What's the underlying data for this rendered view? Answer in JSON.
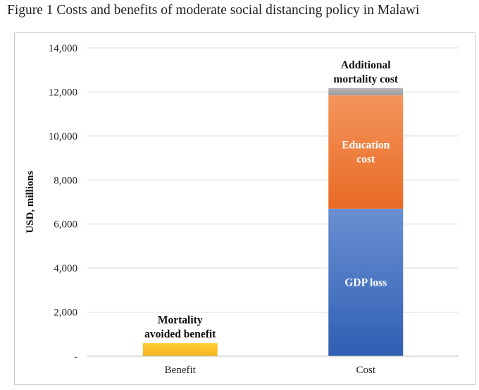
{
  "figure": {
    "title": "Figure 1 Costs and benefits of moderate social distancing policy in Malawi"
  },
  "chart_data": {
    "type": "bar",
    "stacked": true,
    "title": "Figure 1 Costs and benefits of moderate social distancing policy in Malawi",
    "xlabel": "",
    "ylabel": "USD, millions",
    "ylim": [
      0,
      14000
    ],
    "yticks": [
      0,
      2000,
      4000,
      6000,
      8000,
      10000,
      12000,
      14000
    ],
    "ytick_labels": [
      "-",
      "2,000",
      "4,000",
      "6,000",
      "8,000",
      "10,000",
      "12,000",
      "14,000"
    ],
    "grid": true,
    "categories": [
      "Benefit",
      "Cost"
    ],
    "series": [
      {
        "name": "Mortality avoided benefit",
        "label_lines": [
          "Mortality",
          "avoided benefit"
        ],
        "values": [
          600,
          0
        ],
        "color": "#f7c12d",
        "label_color": "#111111"
      },
      {
        "name": "GDP loss",
        "label_lines": [
          "GDP loss"
        ],
        "values": [
          0,
          6700
        ],
        "color": "#4472c4",
        "label_color": "#ffffff"
      },
      {
        "name": "Education cost",
        "label_lines": [
          "Education",
          "cost"
        ],
        "values": [
          0,
          5150
        ],
        "color": "#ed7d31",
        "label_color": "#ffffff"
      },
      {
        "name": "Additional mortality cost",
        "label_lines": [
          "Additional",
          "mortality cost"
        ],
        "values": [
          0,
          330
        ],
        "color": "#a5a5a5",
        "label_color": "#111111"
      }
    ]
  }
}
